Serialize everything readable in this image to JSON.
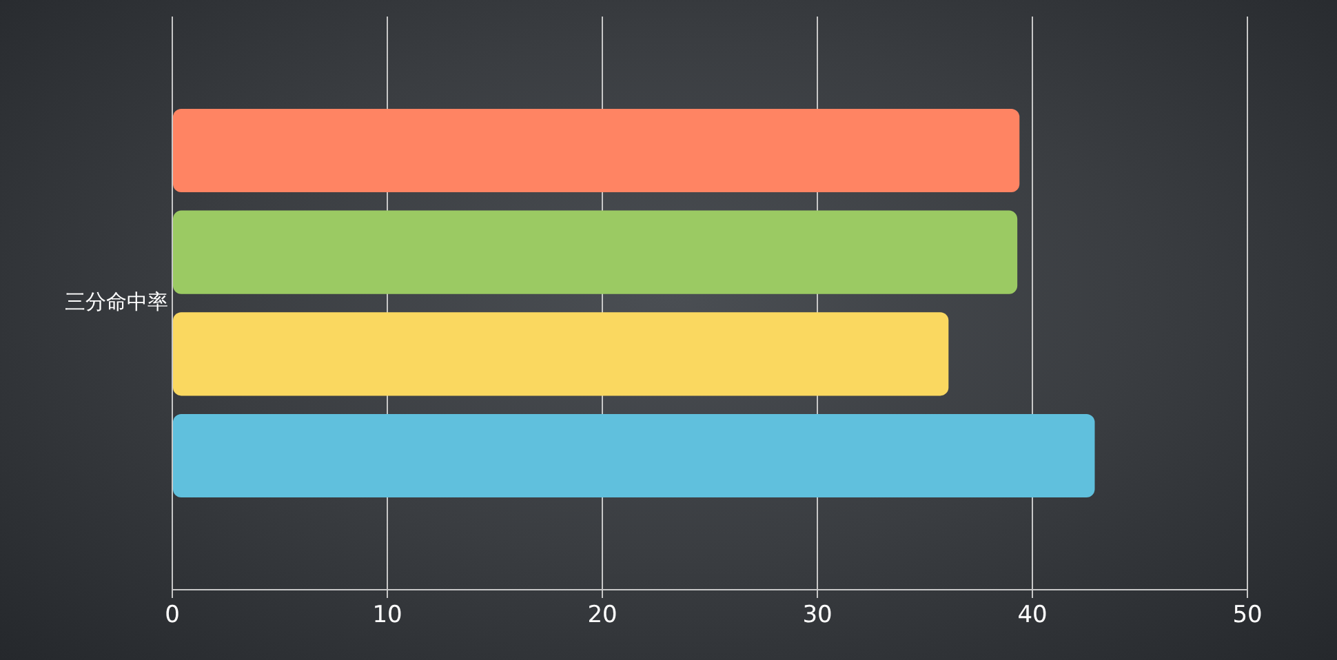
{
  "chart_data": {
    "type": "bar",
    "orientation": "horizontal",
    "categories": [
      "三分命中率"
    ],
    "series": [
      {
        "color": "#ff8463",
        "values": [
          39.4
        ]
      },
      {
        "color": "#9bca63",
        "values": [
          39.3
        ]
      },
      {
        "color": "#fad860",
        "values": [
          36.1
        ]
      },
      {
        "color": "#60c0dd",
        "values": [
          42.9
        ]
      }
    ],
    "xlim": [
      0,
      50
    ],
    "xticks": [
      0,
      10,
      20,
      30,
      40,
      50
    ],
    "grid": "x",
    "legend": false
  }
}
